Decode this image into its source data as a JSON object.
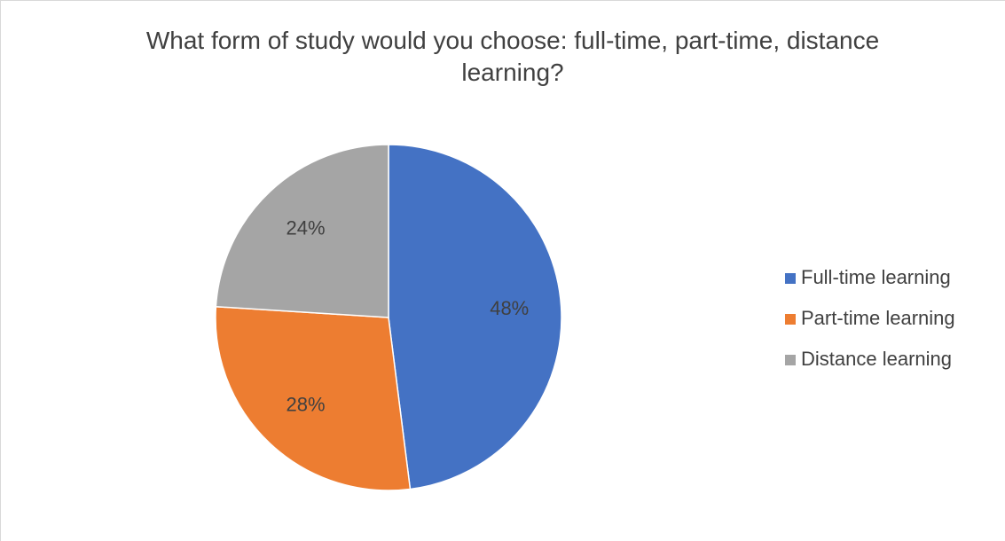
{
  "chart_data": {
    "type": "pie",
    "title": "What form of study would you choose: full-time, part-time, distance learning?",
    "categories": [
      "Full-time learning",
      "Part-time learning",
      "Distance learning"
    ],
    "values": [
      48,
      28,
      24
    ],
    "value_labels": [
      "48%",
      "28%",
      "24%"
    ],
    "colors": [
      "#4472c4",
      "#ed7d31",
      "#a5a5a5"
    ],
    "legend": "right"
  }
}
